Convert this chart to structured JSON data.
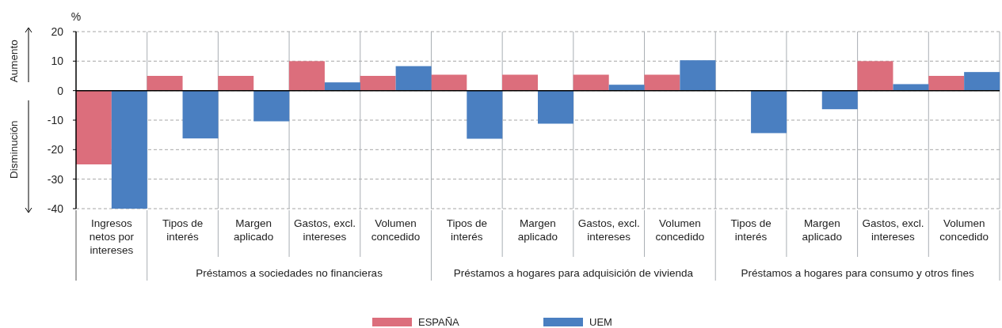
{
  "chart_data": {
    "type": "bar",
    "ylabel": "%",
    "categories": [
      "Ingresos\nnetos por\nintereses",
      "Tipos de\ninterés",
      "Margen\naplicado",
      "Gastos, excl.\nintereses",
      "Volumen\nconcedido",
      "Tipos de\ninterés",
      "Margen\naplicado",
      "Gastos, excl.\nintereses",
      "Volumen\nconcedido",
      "Tipos de\ninterés",
      "Margen\naplicado",
      "Gastos, excl.\nintereses",
      "Volumen\nconcedido"
    ],
    "series": [
      {
        "name": "ESPAÑA",
        "color": "#dc6e7c",
        "values": [
          -25,
          5,
          5,
          10,
          5,
          5.4,
          5.4,
          5.4,
          5.4,
          null,
          null,
          10,
          5
        ]
      },
      {
        "name": "UEM",
        "color": "#4a7fc1",
        "values": [
          -40,
          -16.2,
          -10.4,
          2.8,
          8.3,
          -16.3,
          -11.2,
          2,
          10.3,
          -14.4,
          -6.3,
          2.2,
          6.3
        ]
      }
    ],
    "ylim": [
      -40,
      20
    ],
    "yticks": [
      -40,
      -30,
      -20,
      -10,
      0,
      10,
      20
    ],
    "grid": "y",
    "legend": "bottom",
    "annotations": [
      "Aumento",
      "Disminución",
      "Préstamos a sociedades no financieras",
      "Préstamos a hogares para adquisición de vivienda",
      "Préstamos a hogares para consumo y otros fines"
    ]
  }
}
